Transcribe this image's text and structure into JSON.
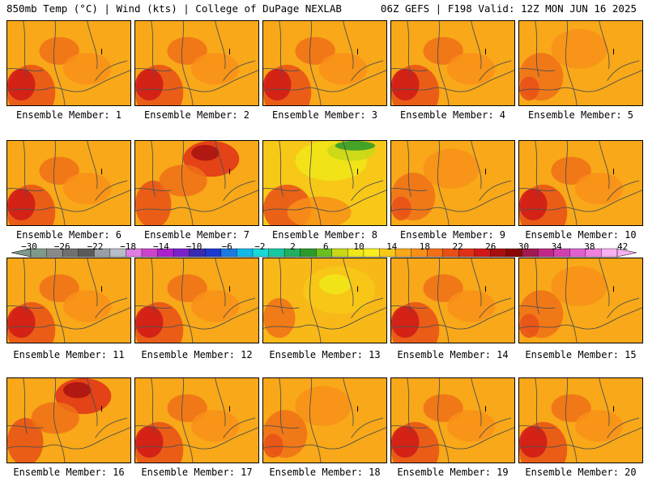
{
  "header": {
    "left": "850mb Temp (°C) | Wind (kts) | College of DuPage NEXLAB",
    "right": "06Z GEFS | F198 Valid: 12Z MON JUN 16 2025"
  },
  "panels": [
    {
      "label": "Ensemble Member: 1",
      "style": "hot-west"
    },
    {
      "label": "Ensemble Member: 2",
      "style": "hot-west"
    },
    {
      "label": "Ensemble Member: 3",
      "style": "hot-west"
    },
    {
      "label": "Ensemble Member: 4",
      "style": "hot-west"
    },
    {
      "label": "Ensemble Member: 5",
      "style": "warm"
    },
    {
      "label": "Ensemble Member: 6",
      "style": "hot-west"
    },
    {
      "label": "Ensemble Member: 7",
      "style": "hot-north"
    },
    {
      "label": "Ensemble Member: 8",
      "style": "cool-north"
    },
    {
      "label": "Ensemble Member: 9",
      "style": "warm"
    },
    {
      "label": "Ensemble Member: 10",
      "style": "hot-west"
    },
    {
      "label": "Ensemble Member: 11",
      "style": "hot-west"
    },
    {
      "label": "Ensemble Member: 12",
      "style": "hot-west"
    },
    {
      "label": "Ensemble Member: 13",
      "style": "mild"
    },
    {
      "label": "Ensemble Member: 14",
      "style": "hot-west"
    },
    {
      "label": "Ensemble Member: 15",
      "style": "warm"
    },
    {
      "label": "Ensemble Member: 16",
      "style": "hot-north"
    },
    {
      "label": "Ensemble Member: 17",
      "style": "hot-west"
    },
    {
      "label": "Ensemble Member: 18",
      "style": "warm"
    },
    {
      "label": "Ensemble Member: 19",
      "style": "hot-west"
    },
    {
      "label": "Ensemble Member: 20",
      "style": "hot-west"
    }
  ],
  "colorbar": {
    "labels": [
      "−30",
      "−26",
      "−22",
      "−18",
      "−14",
      "−10",
      "−6",
      "−2",
      "2",
      "6",
      "10",
      "14",
      "18",
      "22",
      "26",
      "30",
      "34",
      "38",
      "42"
    ],
    "colors": [
      "#7f9a8a",
      "#8a8a8a",
      "#707070",
      "#5a5a5a",
      "#9aa0a8",
      "#b8bec8",
      "#e07de0",
      "#cc44cc",
      "#aa22cc",
      "#7a22cc",
      "#3a2ab0",
      "#1a3ad0",
      "#1a7ae0",
      "#12b8e8",
      "#18d8d8",
      "#18c8a0",
      "#20b060",
      "#2a9a2a",
      "#6ac020",
      "#c8d818",
      "#f0e818",
      "#f8f020",
      "#f8c818",
      "#f8a818",
      "#f89018",
      "#f07018",
      "#e85018",
      "#e03018",
      "#d01818",
      "#a81010",
      "#8a0808",
      "#a01a50",
      "#c02888",
      "#d040b0",
      "#e060d0",
      "#f080e0",
      "#f8b0f0"
    ]
  },
  "colors": {
    "background": "#ffffff",
    "border": "#000000",
    "map_lines": "#505050"
  }
}
